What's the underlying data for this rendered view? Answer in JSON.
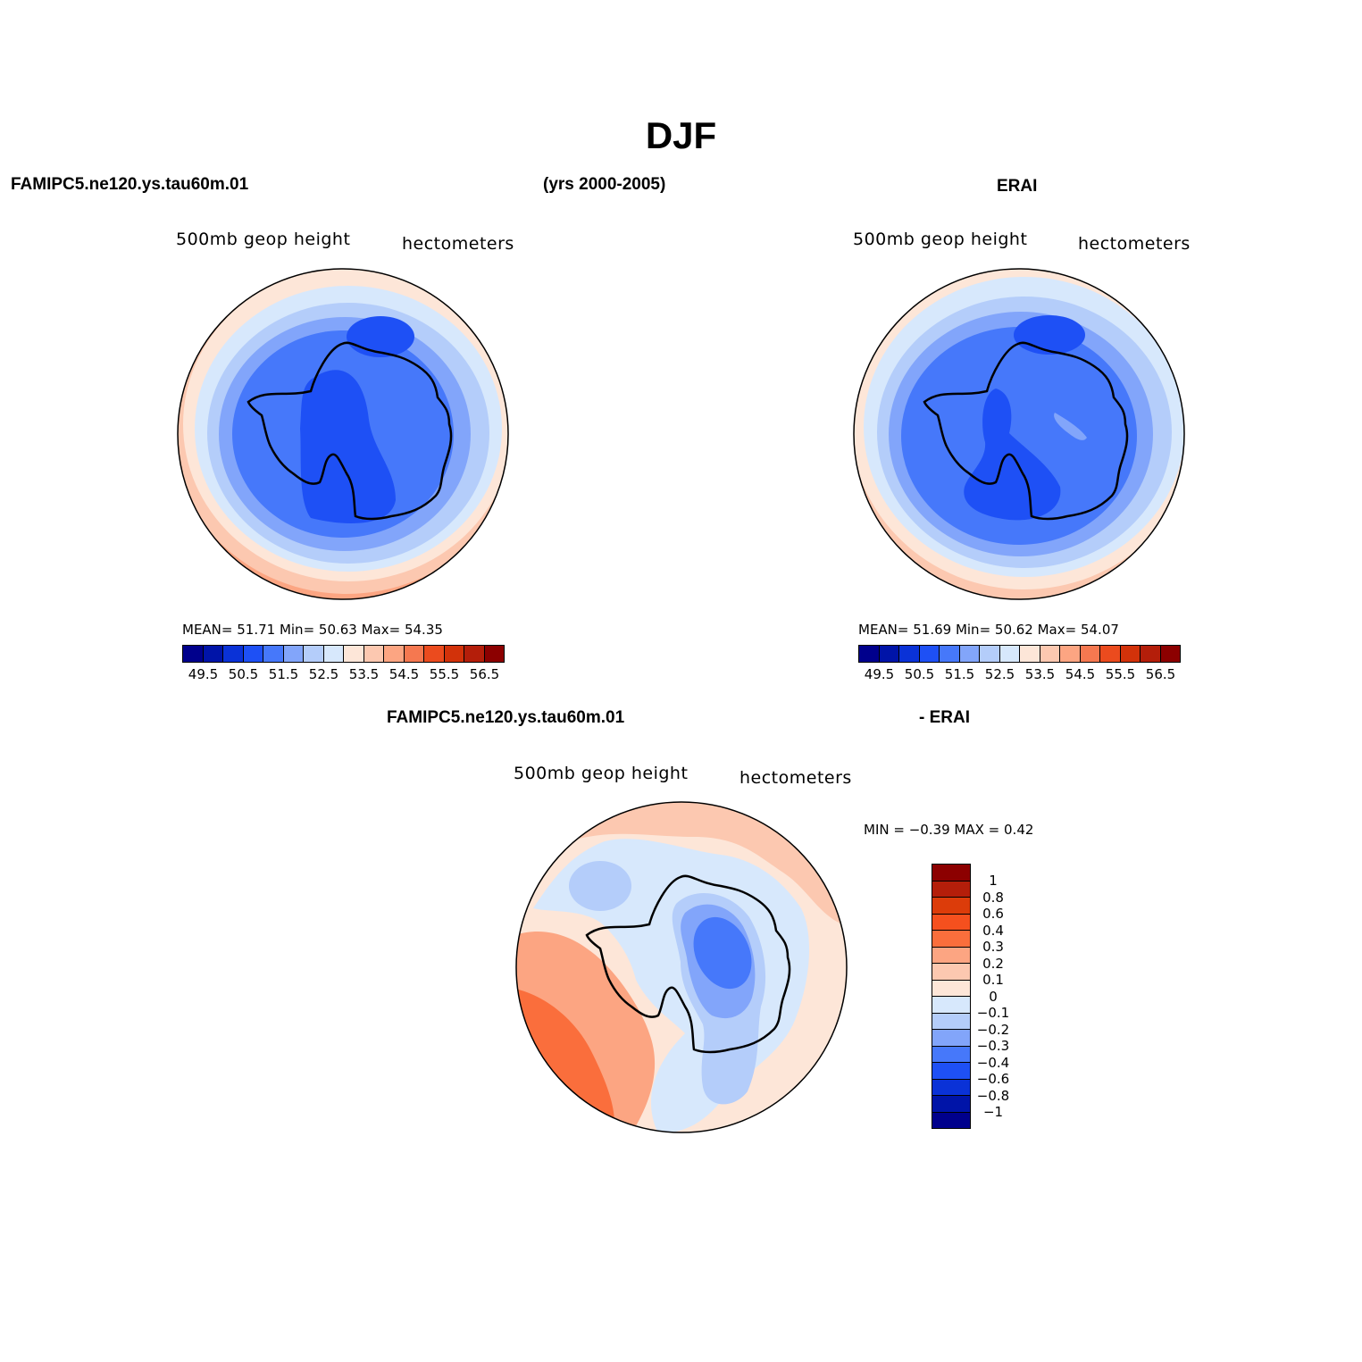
{
  "title": "DJF",
  "top_left_label": "FAMIPC5.ne120.ys.tau60m.01",
  "years_label": "(yrs 2000-2005)",
  "top_right_label": "ERAI",
  "panel_left": {
    "variable": "500mb  geop  height",
    "units": "hectometers",
    "stats": "MEAN=   51.71   Min=   50.63   Max=   54.35",
    "colorbar_labels": [
      "49.5",
      "50.5",
      "51.5",
      "52.5",
      "53.5",
      "54.5",
      "55.5",
      "56.5"
    ]
  },
  "panel_right": {
    "variable": "500mb  geop  height",
    "units": "hectometers",
    "stats": "MEAN=   51.69   Min=   50.62   Max=   54.07",
    "colorbar_labels": [
      "49.5",
      "50.5",
      "51.5",
      "52.5",
      "53.5",
      "54.5",
      "55.5",
      "56.5"
    ]
  },
  "diff_title_left": "FAMIPC5.ne120.ys.tau60m.01",
  "diff_title_right": "- ERAI",
  "panel_diff": {
    "variable": "500mb  geop  height",
    "units": "hectometers",
    "stats": "MIN =   −0.39  MAX =     0.42",
    "colorbar_labels": [
      "1",
      "0.8",
      "0.6",
      "0.4",
      "0.3",
      "0.2",
      "0.1",
      "0",
      "−0.1",
      "−0.2",
      "−0.3",
      "−0.4",
      "−0.6",
      "−0.8",
      "−1"
    ]
  },
  "colors": {
    "abs_scale": [
      "#00008c",
      "#0014a8",
      "#0a32d7",
      "#1e50f5",
      "#4678fa",
      "#82a5fa",
      "#b4cdfa",
      "#d7e8fc",
      "#fde6d8",
      "#fcc8b0",
      "#fca582",
      "#f57850",
      "#eb4b1e",
      "#d2320a",
      "#b41e0a",
      "#8c0000"
    ],
    "diff_scale": [
      "#8c0000",
      "#b41e0a",
      "#dc3c0a",
      "#f5501e",
      "#fa6e3c",
      "#fca582",
      "#fcc8b0",
      "#fde6d8",
      "#d7e8fc",
      "#b4cdfa",
      "#82a5fa",
      "#4678fa",
      "#1e50f5",
      "#0a32d7",
      "#0014a8",
      "#00008c"
    ]
  }
}
